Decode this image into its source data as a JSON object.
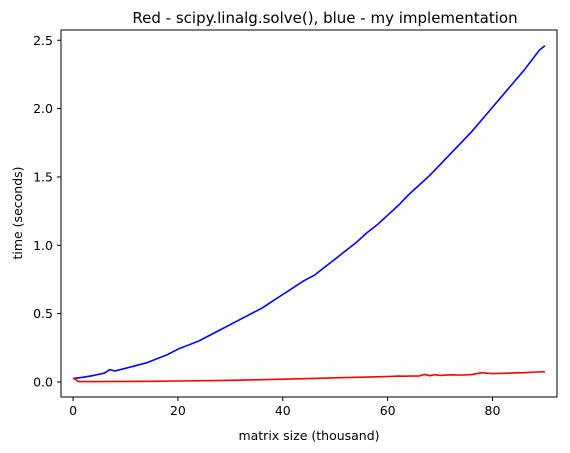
{
  "chart_data": {
    "type": "line",
    "title": "Red - scipy.linalg.solve(), blue - my implementation",
    "xlabel": "matrix size (thousand)",
    "ylabel": "time (seconds)",
    "xlim": [
      -2.3,
      92.3
    ],
    "ylim": [
      -0.11,
      2.575
    ],
    "x_ticks": [
      0,
      20,
      40,
      60,
      80
    ],
    "y_ticks": [
      0.0,
      0.5,
      1.0,
      1.5,
      2.0,
      2.5
    ],
    "x_tick_labels": [
      "0",
      "20",
      "40",
      "60",
      "80"
    ],
    "y_tick_labels": [
      "0.0",
      "0.5",
      "1.0",
      "1.5",
      "2.0",
      "2.5"
    ],
    "grid": false,
    "legend": "none",
    "series": [
      {
        "color": "#0000ff",
        "x": [
          0,
          2,
          4,
          6,
          7,
          8,
          10,
          12,
          14,
          16,
          18,
          20,
          22,
          24,
          26,
          28,
          30,
          32,
          34,
          36,
          38,
          40,
          42,
          44,
          46,
          48,
          50,
          52,
          54,
          56,
          58,
          60,
          62,
          64,
          66,
          68,
          70,
          72,
          74,
          76,
          78,
          80,
          82,
          84,
          86,
          88,
          89,
          90
        ],
        "y": [
          0.025,
          0.035,
          0.048,
          0.065,
          0.09,
          0.08,
          0.1,
          0.12,
          0.14,
          0.17,
          0.2,
          0.24,
          0.27,
          0.3,
          0.34,
          0.38,
          0.42,
          0.46,
          0.5,
          0.54,
          0.59,
          0.64,
          0.69,
          0.74,
          0.78,
          0.84,
          0.9,
          0.96,
          1.02,
          1.09,
          1.15,
          1.22,
          1.29,
          1.37,
          1.44,
          1.51,
          1.59,
          1.67,
          1.75,
          1.83,
          1.92,
          2.01,
          2.1,
          2.19,
          2.28,
          2.38,
          2.43,
          2.46
        ]
      },
      {
        "color": "#ff0000",
        "x": [
          0,
          1,
          5,
          10,
          15,
          20,
          25,
          30,
          35,
          40,
          45,
          50,
          55,
          60,
          62,
          63,
          66,
          67,
          68,
          69,
          70,
          72,
          74,
          76,
          78,
          79,
          80,
          82,
          84,
          86,
          88,
          90
        ],
        "y": [
          0.03,
          0.003,
          0.003,
          0.004,
          0.005,
          0.007,
          0.009,
          0.012,
          0.016,
          0.02,
          0.025,
          0.03,
          0.035,
          0.04,
          0.043,
          0.042,
          0.044,
          0.055,
          0.046,
          0.053,
          0.048,
          0.052,
          0.05,
          0.054,
          0.068,
          0.064,
          0.061,
          0.063,
          0.066,
          0.068,
          0.072,
          0.075
        ]
      }
    ]
  }
}
